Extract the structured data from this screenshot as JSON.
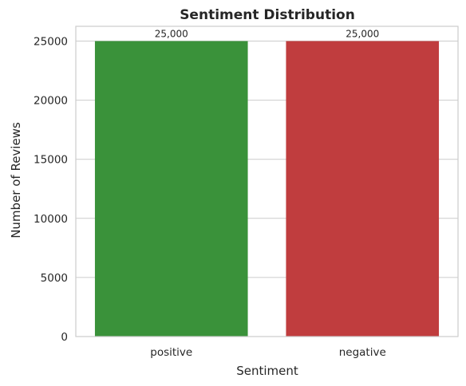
{
  "chart_data": {
    "type": "bar",
    "title": "Sentiment Distribution",
    "xlabel": "Sentiment",
    "ylabel": "Number of Reviews",
    "categories": [
      "positive",
      "negative"
    ],
    "values": [
      25000,
      25000
    ],
    "data_labels": [
      "25,000",
      "25,000"
    ],
    "colors": [
      "#3a923a",
      "#c03d3e"
    ],
    "ylim": [
      0,
      26250
    ],
    "yticks": [
      0,
      5000,
      10000,
      15000,
      20000,
      25000
    ],
    "ytick_labels": [
      "0",
      "5000",
      "10000",
      "15000",
      "20000",
      "25000"
    ],
    "grid": true,
    "grid_color": "#cccccc",
    "frame_color": "#cccccc",
    "text_color": "#262626"
  }
}
